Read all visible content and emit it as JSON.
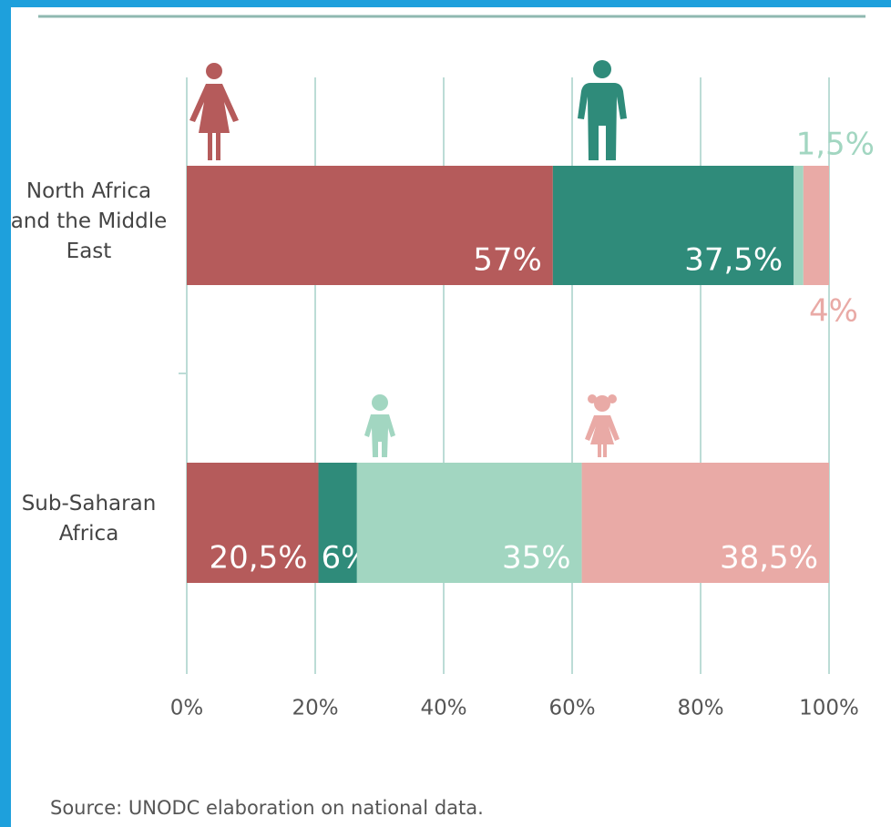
{
  "chart_data": {
    "type": "stacked-bar-horizontal",
    "categories": [
      "North Africa and the Middle East",
      "Sub-Saharan Africa"
    ],
    "series": [
      {
        "color": "#b55b5b",
        "values": [
          57,
          20.5
        ],
        "value_labels": [
          "57%",
          "20,5%"
        ]
      },
      {
        "color": "#2f8b7a",
        "values": [
          37.5,
          6
        ],
        "value_labels": [
          "37,5%",
          "6%"
        ]
      },
      {
        "color": "#a2d6c1",
        "values": [
          1.5,
          35
        ],
        "value_labels": [
          "1,5%",
          "35%"
        ]
      },
      {
        "color": "#e9aaa6",
        "values": [
          4,
          38.5
        ],
        "value_labels": [
          "4%",
          "38,5%"
        ]
      }
    ],
    "xlim": [
      0,
      100
    ],
    "xticks": [
      {
        "value": 0,
        "label": "0%"
      },
      {
        "value": 20,
        "label": "20%"
      },
      {
        "value": 40,
        "label": "40%"
      },
      {
        "value": 60,
        "label": "60%"
      },
      {
        "value": 80,
        "label": "80%"
      },
      {
        "value": 100,
        "label": "100%"
      }
    ],
    "grid": true,
    "source": "Source: UNODC elaboration on national data."
  }
}
